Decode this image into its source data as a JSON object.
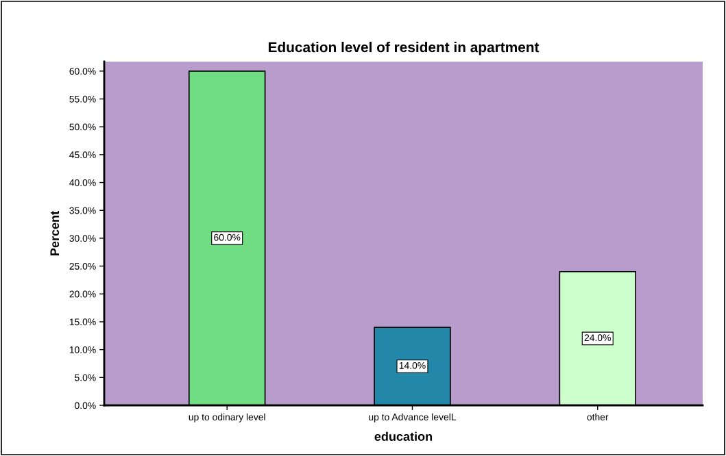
{
  "chart_data": {
    "type": "bar",
    "title": "Education level of resident in apartment",
    "xlabel": "education",
    "ylabel": "Percent",
    "categories": [
      "up to odinary level",
      "up to Advance levelL",
      "other"
    ],
    "values": [
      60.0,
      14.0,
      24.0
    ],
    "colors": [
      "#70dc84",
      "#2287a8",
      "#ccffcc"
    ],
    "value_labels": [
      "60.0%",
      "14.0%",
      "24.0%"
    ],
    "ylim": [
      0,
      61.7
    ],
    "yticks": [
      {
        "value": 0,
        "label": "0.0%"
      },
      {
        "value": 5,
        "label": "5.0%"
      },
      {
        "value": 10,
        "label": "10.0%"
      },
      {
        "value": 15,
        "label": "15.0%"
      },
      {
        "value": 20,
        "label": "20.0%"
      },
      {
        "value": 25,
        "label": "25.0%"
      },
      {
        "value": 30,
        "label": "30.0%"
      },
      {
        "value": 35,
        "label": "35.0%"
      },
      {
        "value": 40,
        "label": "40.0%"
      },
      {
        "value": 45,
        "label": "45.0%"
      },
      {
        "value": 50,
        "label": "50.0%"
      },
      {
        "value": 55,
        "label": "55.0%"
      },
      {
        "value": 60,
        "label": "60.0%"
      }
    ],
    "grid": false,
    "legend": false
  }
}
